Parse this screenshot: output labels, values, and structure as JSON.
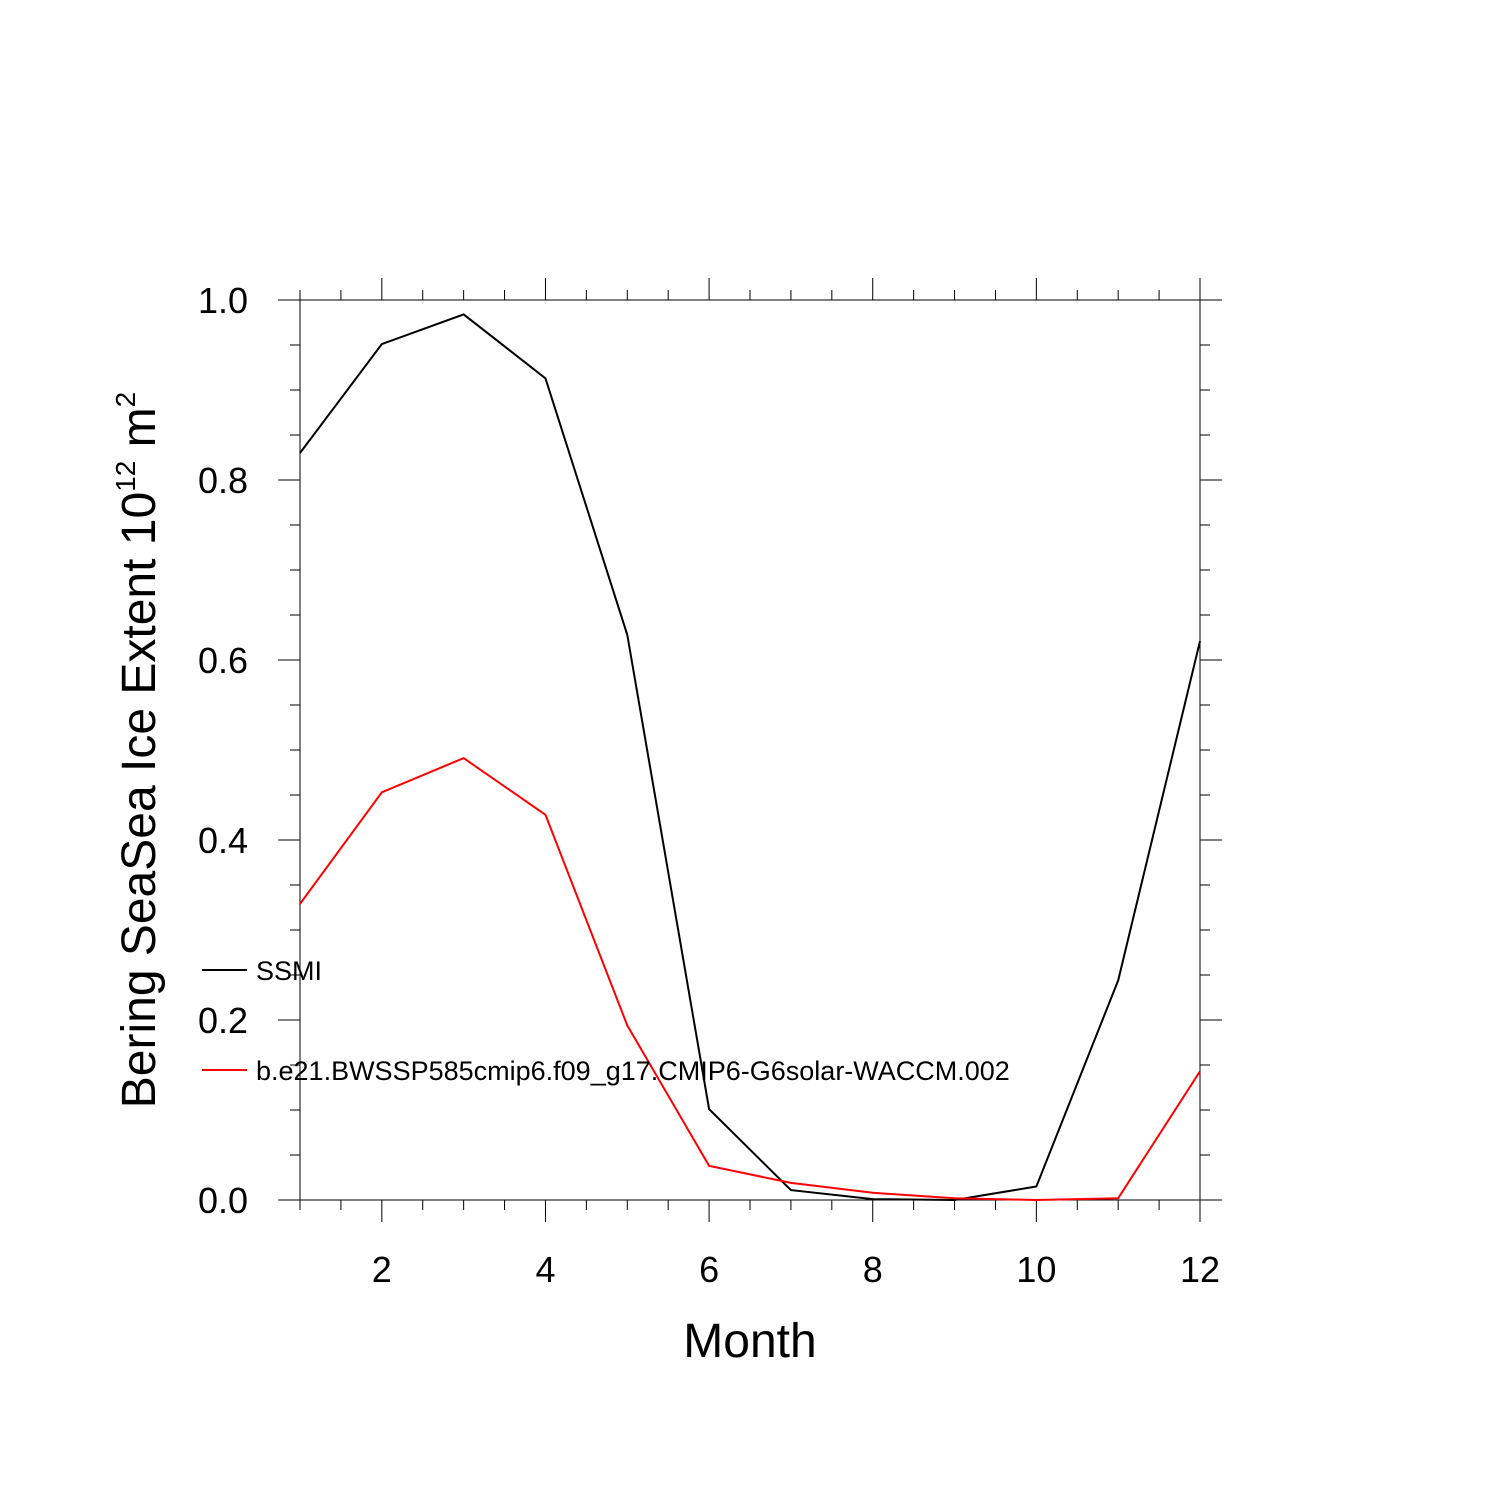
{
  "chart_data": {
    "type": "line",
    "x": [
      1,
      2,
      3,
      4,
      5,
      6,
      7,
      8,
      9,
      10,
      11,
      12
    ],
    "series": [
      {
        "name": "SSMI",
        "color": "#000000",
        "values": [
          0.83,
          0.951,
          0.984,
          0.913,
          0.628,
          0.101,
          0.011,
          0.001,
          0.0,
          0.015,
          0.244,
          0.621
        ]
      },
      {
        "name": "b.e21.BWSSP585cmip6.f09_g17.CMIP6-G6solar-WACCM.002",
        "color": "#ff0000",
        "values": [
          0.329,
          0.453,
          0.491,
          0.428,
          0.194,
          0.038,
          0.019,
          0.008,
          0.002,
          0.0,
          0.002,
          0.143
        ]
      }
    ],
    "xlabel": "Month",
    "ylabel_main": "Bering SeaSea Ice Extent 10",
    "ylabel_sup1": "12",
    "ylabel_unit": " m",
    "ylabel_sup2": "2",
    "xlim": [
      1,
      12
    ],
    "ylim": [
      0,
      1.0
    ],
    "x_ticks": [
      2,
      4,
      6,
      8,
      10,
      12
    ],
    "x_tick_labels": [
      "2",
      "4",
      "6",
      "8",
      "10",
      "12"
    ],
    "y_ticks": [
      0,
      0.2,
      0.4,
      0.6,
      0.8,
      1.0
    ],
    "y_tick_labels": [
      "0.0",
      "0.2",
      "0.4",
      "0.6",
      "0.8",
      "1.0"
    ],
    "grid": false,
    "legend_position": "lower-left"
  }
}
